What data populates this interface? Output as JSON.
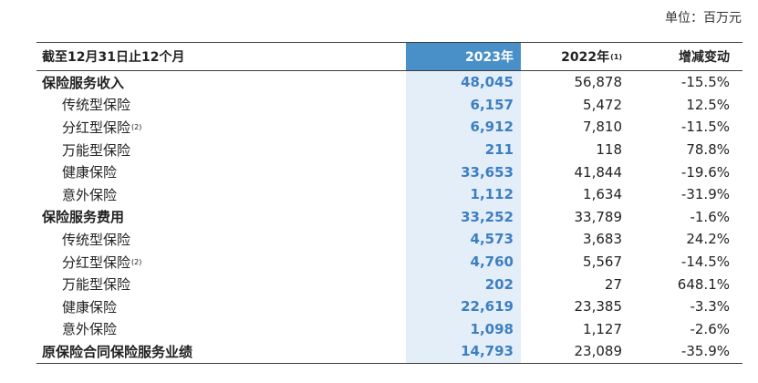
{
  "unit_label": "单位：百万元",
  "headers": [
    "截至12月31日止12个月",
    "2023年",
    "2022年",
    "增减变动"
  ],
  "header_note": "(1)",
  "rows": [
    {
      "label": "保险服务收入",
      "note": "",
      "v2023": "48,045",
      "v2022": "56,878",
      "change": "-15.5%",
      "bold": true
    },
    {
      "label": "传统型保险",
      "note": "",
      "v2023": "6,157",
      "v2022": "5,472",
      "change": "12.5%",
      "bold": false
    },
    {
      "label": "分红型保险",
      "note": "(2)",
      "v2023": "6,912",
      "v2022": "7,810",
      "change": "-11.5%",
      "bold": false
    },
    {
      "label": "万能型保险",
      "note": "",
      "v2023": "211",
      "v2022": "118",
      "change": "78.8%",
      "bold": false
    },
    {
      "label": "健康保险",
      "note": "",
      "v2023": "33,653",
      "v2022": "41,844",
      "change": "-19.6%",
      "bold": false
    },
    {
      "label": "意外保险",
      "note": "",
      "v2023": "1,112",
      "v2022": "1,634",
      "change": "-31.9%",
      "bold": false
    },
    {
      "label": "保险服务费用",
      "note": "",
      "v2023": "33,252",
      "v2022": "33,789",
      "change": "-1.6%",
      "bold": true
    },
    {
      "label": "传统型保险",
      "note": "",
      "v2023": "4,573",
      "v2022": "3,683",
      "change": "24.2%",
      "bold": false
    },
    {
      "label": "分红型保险",
      "note": "(2)",
      "v2023": "4,760",
      "v2022": "5,567",
      "change": "-14.5%",
      "bold": false
    },
    {
      "label": "万能型保险",
      "note": "",
      "v2023": "202",
      "v2022": "27",
      "change": "648.1%",
      "bold": false
    },
    {
      "label": "健康保险",
      "note": "",
      "v2023": "22,619",
      "v2022": "23,385",
      "change": "-3.3%",
      "bold": false
    },
    {
      "label": "意外保险",
      "note": "",
      "v2023": "1,098",
      "v2022": "1,127",
      "change": "-2.6%",
      "bold": false
    },
    {
      "label": "原保险合同保险服务业绩",
      "note": "",
      "v2023": "14,793",
      "v2022": "23,089",
      "change": "-35.9%",
      "bold": true
    }
  ]
}
